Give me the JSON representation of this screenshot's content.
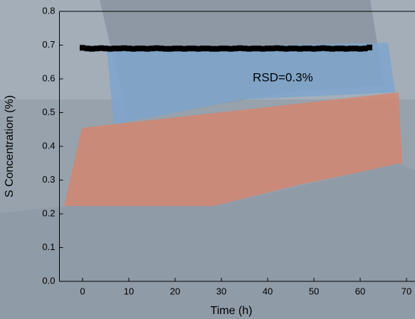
{
  "chart_data": {
    "type": "scatter",
    "x_label": "Time (h)",
    "y_label": "S Concentration (%)",
    "annotation": "RSD=0.3%",
    "color": "#000000",
    "x": [
      0,
      1,
      2,
      3,
      4,
      5,
      6,
      7,
      8,
      9,
      10,
      11,
      12,
      13,
      14,
      15,
      16,
      17,
      18,
      19,
      20,
      21,
      22,
      23,
      24,
      25,
      26,
      27,
      28,
      29,
      30,
      31,
      32,
      33,
      34,
      35,
      36,
      37,
      38,
      39,
      40,
      41,
      42,
      43,
      44,
      45,
      46,
      47,
      48,
      49,
      50,
      51,
      52,
      53,
      54,
      55,
      56,
      57,
      58,
      59,
      60,
      61,
      62
    ],
    "values": [
      0.692,
      0.69,
      0.689,
      0.69,
      0.691,
      0.69,
      0.689,
      0.69,
      0.69,
      0.691,
      0.69,
      0.689,
      0.69,
      0.69,
      0.689,
      0.69,
      0.691,
      0.69,
      0.689,
      0.689,
      0.69,
      0.69,
      0.689,
      0.69,
      0.69,
      0.689,
      0.69,
      0.69,
      0.689,
      0.689,
      0.69,
      0.69,
      0.689,
      0.69,
      0.691,
      0.69,
      0.689,
      0.69,
      0.69,
      0.689,
      0.69,
      0.69,
      0.691,
      0.69,
      0.689,
      0.69,
      0.69,
      0.689,
      0.69,
      0.69,
      0.689,
      0.69,
      0.691,
      0.69,
      0.689,
      0.69,
      0.69,
      0.689,
      0.69,
      0.69,
      0.689,
      0.69,
      0.693
    ],
    "xlim": [
      -5,
      70
    ],
    "xticks": [
      0,
      10,
      20,
      30,
      40,
      50,
      60,
      70
    ],
    "ylim": [
      0,
      0.8
    ],
    "yticks": [
      {
        "value": 0,
        "label": "0.0"
      },
      0.1,
      0.2,
      0.3,
      0.4,
      0.5,
      0.6,
      0.7,
      0.8
    ]
  }
}
